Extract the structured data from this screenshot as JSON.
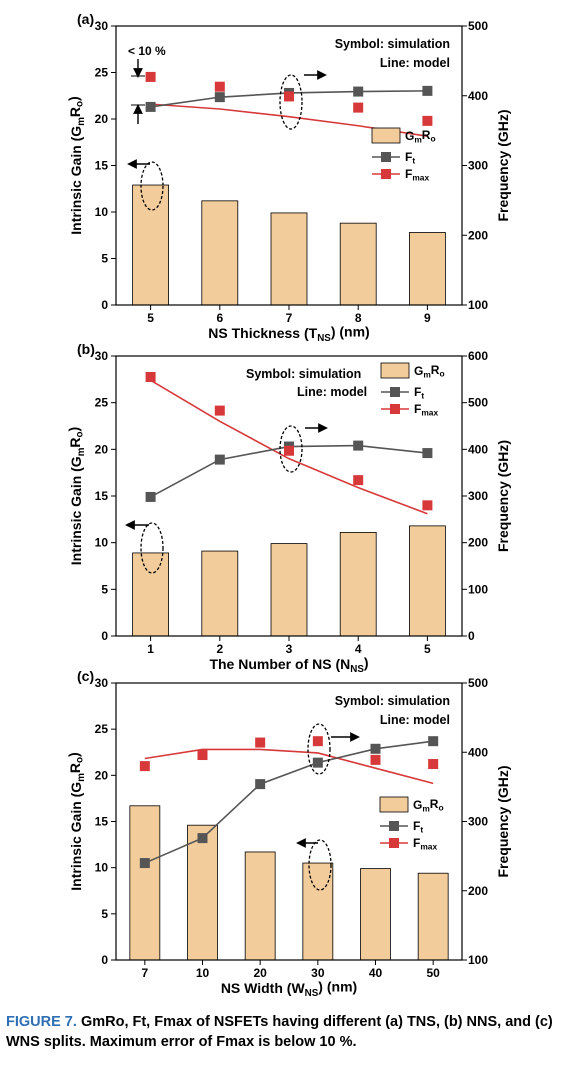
{
  "caption": {
    "label": "FIGURE 7.",
    "text": "GmRo, Ft, Fmax of NSFETs having different (a) TNS, (b) NNS, and (c) WNS splits. Maximum error of Fmax is below 10 %."
  },
  "colors": {
    "bar": "#f3cc9c",
    "ft": "#555555",
    "fmax": "#d7393a"
  },
  "chart_data": [
    {
      "panel": "(a)",
      "type": "bar",
      "categories": [
        "5",
        "6",
        "7",
        "8",
        "9"
      ],
      "xlabel": "NS Thickness (TNS) (nm)",
      "ylabel": "Intrinsic Gain (GmRo)",
      "ylabel_right": "Frequency (GHz)",
      "ylim": [
        0,
        30
      ],
      "yticks": [
        0,
        5,
        10,
        15,
        20,
        25,
        30
      ],
      "ylim_right": [
        100,
        500
      ],
      "yticks_right": [
        100,
        200,
        300,
        400,
        500
      ],
      "notes": [
        "Symbol: simulation",
        "Line: model"
      ],
      "annotation": "< 10 %",
      "legend": [
        "GmRo",
        "Ft",
        "Fmax"
      ],
      "legend_position": "center-right",
      "series": [
        {
          "name": "GmRo",
          "axis": "left",
          "kind": "bar",
          "values": [
            12.9,
            11.2,
            9.9,
            8.8,
            7.8
          ]
        },
        {
          "name": "Ft",
          "axis": "right",
          "kind": "line+markers",
          "values": [
            384,
            398,
            404,
            406,
            407
          ]
        },
        {
          "name": "Fmax",
          "axis": "right",
          "kind": "markers",
          "values": [
            427,
            413,
            399,
            383,
            364
          ]
        },
        {
          "name": "Fmax (model)",
          "axis": "right",
          "kind": "line",
          "values": [
            388,
            381,
            370,
            357,
            342
          ]
        }
      ]
    },
    {
      "panel": "(b)",
      "type": "bar",
      "categories": [
        "1",
        "2",
        "3",
        "4",
        "5"
      ],
      "xlabel": "The Number of NS (NNS)",
      "ylabel": "Intrinsic Gain (GmRo)",
      "ylabel_right": "Frequency (GHz)",
      "ylim": [
        0,
        30
      ],
      "yticks": [
        0,
        5,
        10,
        15,
        20,
        25,
        30
      ],
      "ylim_right": [
        0,
        600
      ],
      "yticks_right": [
        0,
        100,
        200,
        300,
        400,
        500,
        600
      ],
      "notes": [
        "Symbol: simulation",
        "Line: model"
      ],
      "annotation": "",
      "legend": [
        "GmRo",
        "Ft",
        "Fmax"
      ],
      "legend_position": "top-right",
      "series": [
        {
          "name": "GmRo",
          "axis": "left",
          "kind": "bar",
          "values": [
            8.9,
            9.1,
            9.9,
            11.1,
            11.8
          ]
        },
        {
          "name": "Ft",
          "axis": "right",
          "kind": "line+markers",
          "values": [
            298,
            378,
            406,
            408,
            392
          ]
        },
        {
          "name": "Fmax",
          "axis": "right",
          "kind": "markers",
          "values": [
            555,
            483,
            397,
            334,
            280
          ]
        },
        {
          "name": "Fmax (model)",
          "axis": "right",
          "kind": "line",
          "values": [
            548,
            460,
            380,
            318,
            262
          ]
        }
      ]
    },
    {
      "panel": "(c)",
      "type": "bar",
      "categories": [
        "7",
        "10",
        "20",
        "30",
        "40",
        "50"
      ],
      "xlabel": "NS Width (WNS) (nm)",
      "ylabel": "Intrinsic Gain (GmRo)",
      "ylabel_right": "Frequency (GHz)",
      "ylim": [
        0,
        30
      ],
      "yticks": [
        0,
        5,
        10,
        15,
        20,
        25,
        30
      ],
      "ylim_right": [
        100,
        500
      ],
      "yticks_right": [
        100,
        200,
        300,
        400,
        500
      ],
      "notes": [
        "Symbol: simulation",
        "Line: model"
      ],
      "annotation": "",
      "legend": [
        "GmRo",
        "Ft",
        "Fmax"
      ],
      "legend_position": "center-right",
      "series": [
        {
          "name": "GmRo",
          "axis": "left",
          "kind": "bar",
          "values": [
            16.7,
            14.6,
            11.7,
            10.5,
            9.9,
            9.4
          ]
        },
        {
          "name": "Ft",
          "axis": "right",
          "kind": "line+markers",
          "values": [
            240,
            276,
            354,
            385,
            405,
            416
          ]
        },
        {
          "name": "Fmax",
          "axis": "right",
          "kind": "markers",
          "values": [
            380,
            396,
            414,
            416,
            389,
            383
          ]
        },
        {
          "name": "Fmax (model)",
          "axis": "right",
          "kind": "line",
          "values": [
            391,
            404,
            404,
            399,
            377,
            355
          ]
        }
      ]
    }
  ]
}
